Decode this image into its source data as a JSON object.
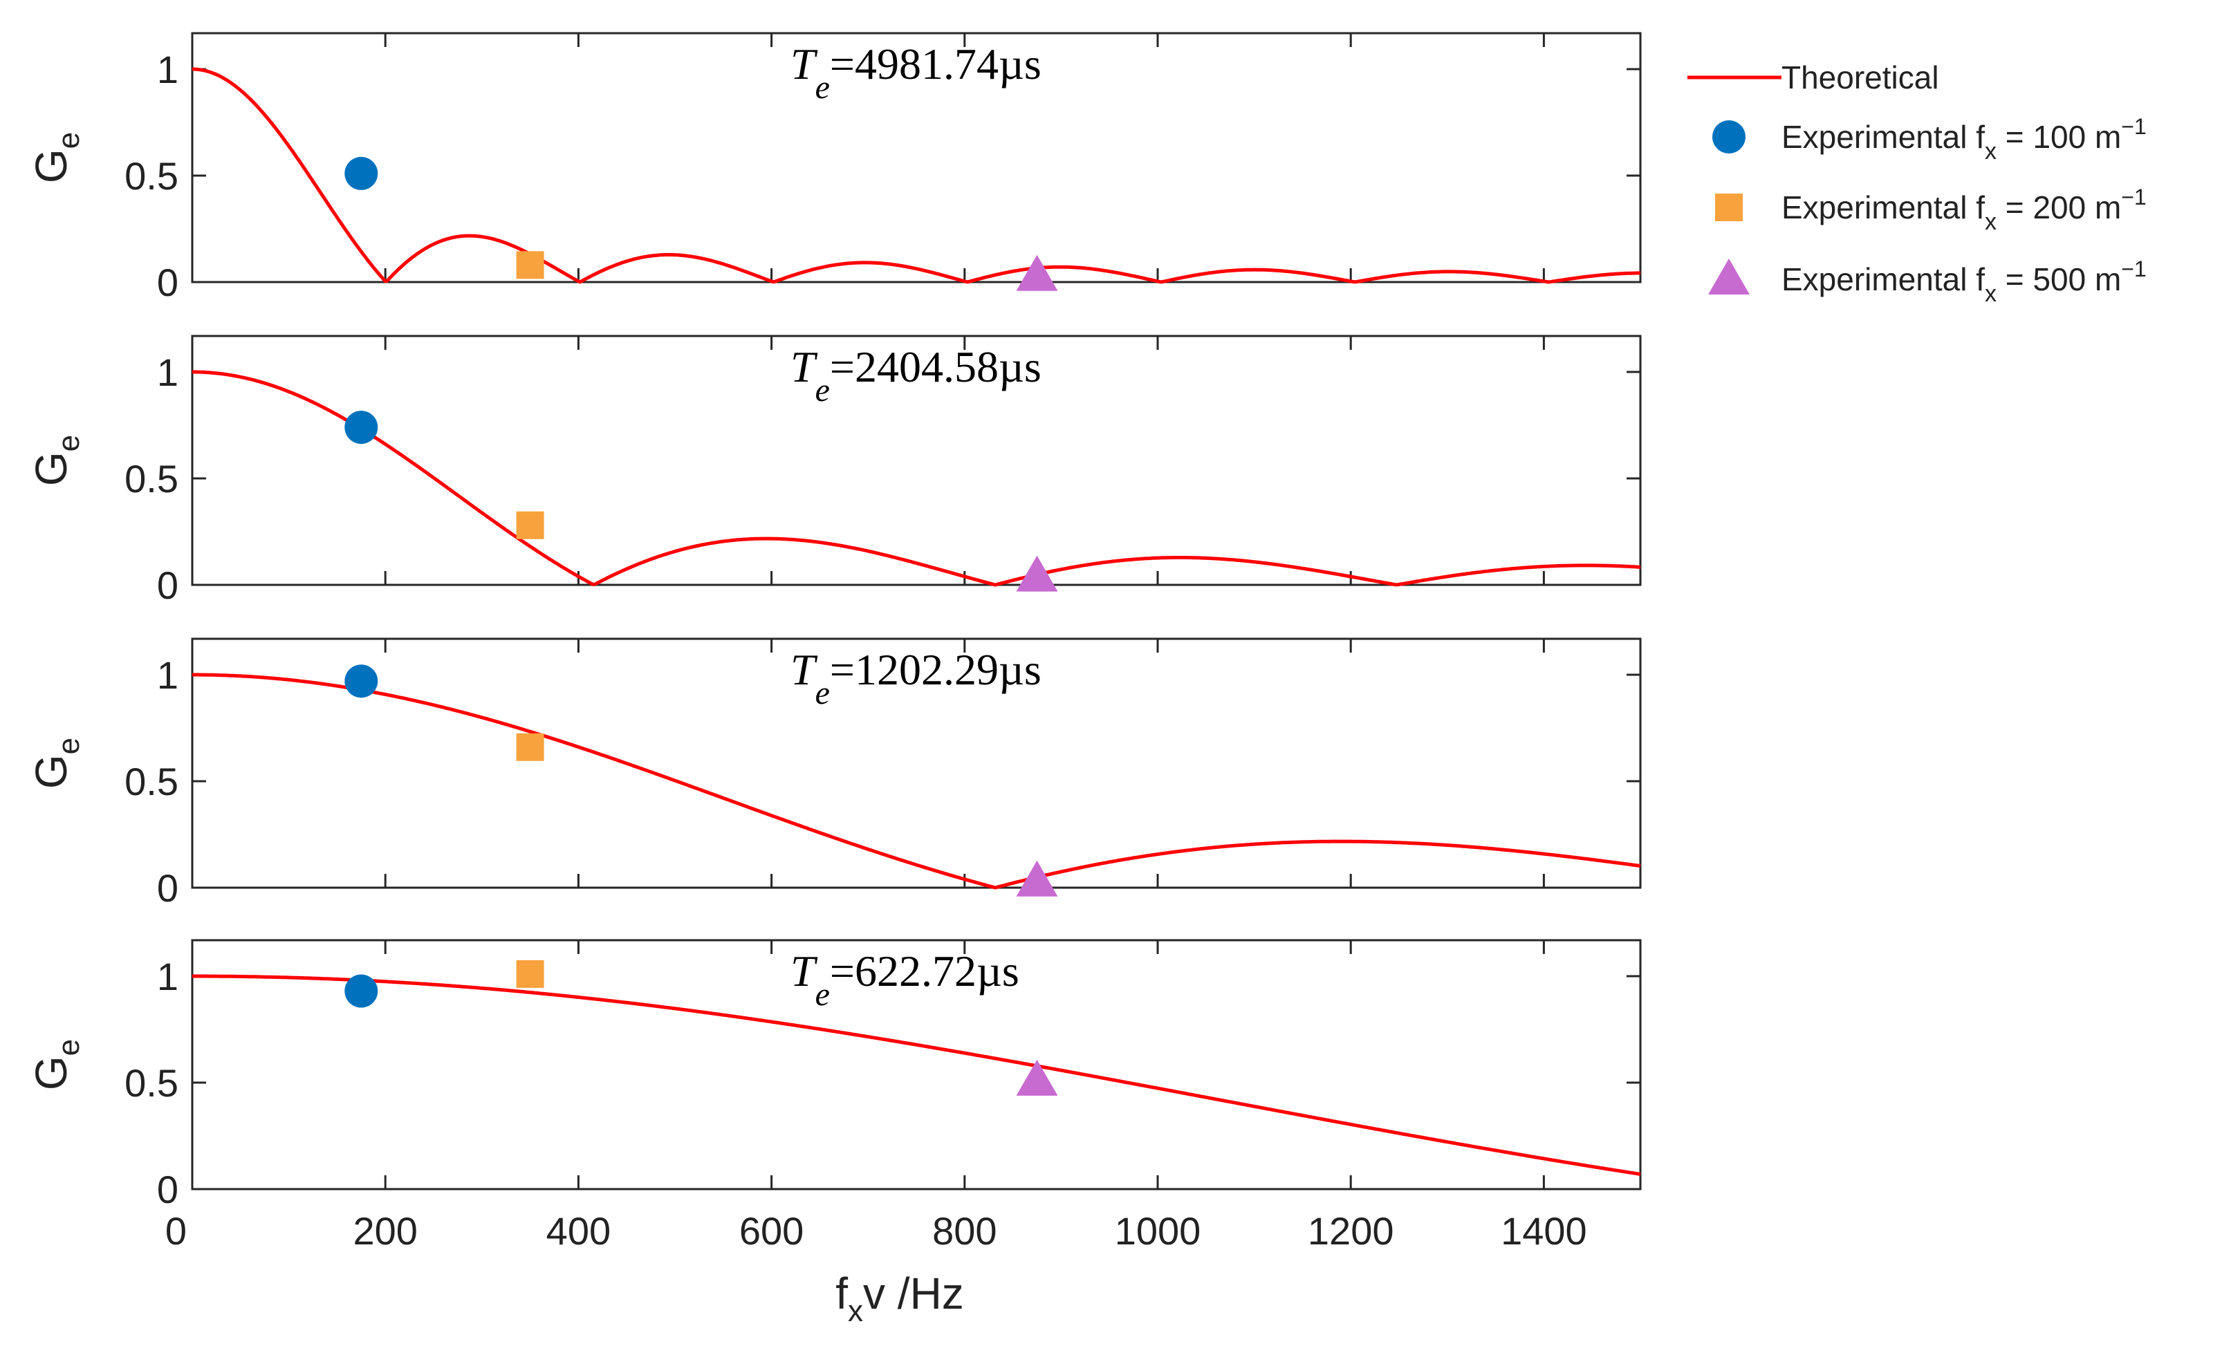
{
  "chart_data": {
    "type": "line",
    "xlabel": {
      "main": "f",
      "sub": "x",
      "rest": "v /Hz"
    },
    "xlim": [
      0,
      1500
    ],
    "xticks": [
      "0",
      "200",
      "400",
      "600",
      "800",
      "1000",
      "1200",
      "1400"
    ],
    "ylabel": {
      "main": "G",
      "sub": "e"
    },
    "ylim": [
      0,
      1.2
    ],
    "yticks": [
      "0",
      "0.5",
      "1"
    ],
    "colors": {
      "theory": "#ff0000",
      "fx100": "#0072bd",
      "fx200": "#f7a23c",
      "fx500": "#c86bd0"
    },
    "legend": {
      "placement": "outside-top-right",
      "entries": [
        {
          "kind": "theory",
          "text": "Theoretical"
        },
        {
          "kind": "fx100",
          "text": "Experimental f",
          "sub": "x",
          "eq": " = 100 m",
          "sup": "−1"
        },
        {
          "kind": "fx200",
          "text": "Experimental f",
          "sub": "x",
          "eq": " = 200 m",
          "sup": "−1"
        },
        {
          "kind": "fx500",
          "text": "Experimental f",
          "sub": "x",
          "eq": " = 500 m",
          "sup": "−1"
        }
      ]
    },
    "panels": [
      {
        "te_us": 4981.74,
        "label": {
          "T": "T",
          "sub": "e",
          "rest": "=4981.74µs"
        },
        "experimental": {
          "fx100": [
            175,
            0.51
          ],
          "fx200": [
            350,
            0.08
          ],
          "fx500": [
            875,
            0.03
          ]
        }
      },
      {
        "te_us": 2404.58,
        "label": {
          "T": "T",
          "sub": "e",
          "rest": "=2404.58µs"
        },
        "experimental": {
          "fx100": [
            175,
            0.74
          ],
          "fx200": [
            350,
            0.28
          ],
          "fx500": [
            875,
            0.04
          ]
        }
      },
      {
        "te_us": 1202.29,
        "label": {
          "T": "T",
          "sub": "e",
          "rest": "=1202.29µs"
        },
        "experimental": {
          "fx100": [
            175,
            0.97
          ],
          "fx200": [
            350,
            0.66
          ],
          "fx500": [
            875,
            0.03
          ]
        }
      },
      {
        "te_us": 622.72,
        "label": {
          "T": "T",
          "sub": "e",
          "rest": "=622.72µs"
        },
        "experimental": {
          "fx100": [
            175,
            0.93
          ],
          "fx200": [
            350,
            1.01
          ],
          "fx500": [
            875,
            0.51
          ]
        }
      }
    ],
    "theory_formula": "G_e = |sin(pi*f*T)/(pi*f*T)|"
  }
}
